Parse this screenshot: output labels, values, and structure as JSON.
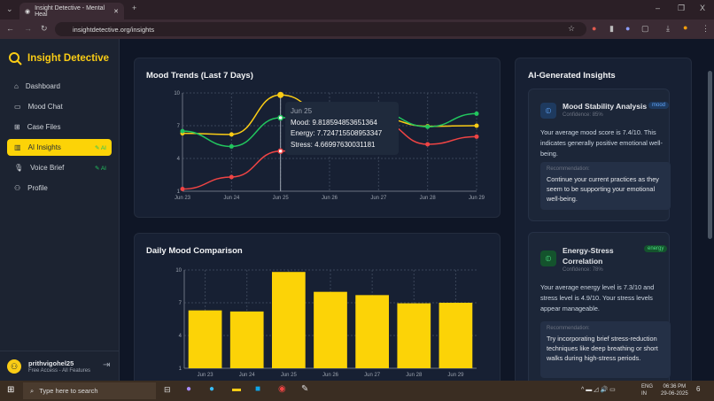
{
  "browser": {
    "tab_title": "Insight Detective - Mental Heal",
    "url": "insightdetective.org/insights",
    "new_tab": "+",
    "minimize": "–",
    "maximize": "❐",
    "close": "X"
  },
  "sidebar": {
    "brand": "Insight Detective",
    "items": [
      {
        "label": "Dashboard",
        "icon": "home-icon"
      },
      {
        "label": "Mood Chat",
        "icon": "chat-icon"
      },
      {
        "label": "Case Files",
        "icon": "book-icon"
      },
      {
        "label": "AI Insights",
        "icon": "chart-icon",
        "badge": "✎ AI",
        "active": true
      },
      {
        "label": "Voice Brief",
        "icon": "mic-icon",
        "badge": "✎ AI"
      },
      {
        "label": "Profile",
        "icon": "user-icon"
      }
    ],
    "user": {
      "name": "prithvigohel25",
      "plan": "Free Access - All Features"
    }
  },
  "colors": {
    "mood": "#facc15",
    "energy": "#22c55e",
    "stress": "#ef4444",
    "accent": "#fcd307"
  },
  "chart_data": [
    {
      "type": "line",
      "title": "Mood Trends (Last 7 Days)",
      "categories": [
        "Jun 23",
        "Jun 24",
        "Jun 25",
        "Jun 26",
        "Jun 27",
        "Jun 28",
        "Jun 29"
      ],
      "ylim": [
        1,
        10
      ],
      "yticks": [
        1,
        4,
        7,
        10
      ],
      "grid": true,
      "series": [
        {
          "name": "Mood",
          "values": [
            6.3,
            6.2,
            9.818594853651364,
            8.0,
            7.7,
            6.95,
            7.0
          ]
        },
        {
          "name": "Energy",
          "values": [
            6.5,
            5.1,
            7.724715508953347,
            8.0,
            8.2,
            6.9,
            8.1
          ]
        },
        {
          "name": "Stress",
          "values": [
            1.2,
            2.3,
            4.66997630031181,
            6.0,
            7.4,
            5.3,
            6.0
          ]
        }
      ],
      "tooltip": {
        "title": "Jun 25",
        "lines": [
          "Mood: 9.818594853651364",
          "Energy: 7.724715508953347",
          "Stress: 4.66997630031181"
        ]
      }
    },
    {
      "type": "bar",
      "title": "Daily Mood Comparison",
      "categories": [
        "Jun 23",
        "Jun 24",
        "Jun 25",
        "Jun 26",
        "Jun 27",
        "Jun 28",
        "Jun 29"
      ],
      "ylim": [
        1,
        10
      ],
      "yticks": [
        1,
        4,
        7,
        10
      ],
      "grid": true,
      "values": [
        6.3,
        6.2,
        9.82,
        8.0,
        7.7,
        6.95,
        7.0
      ]
    }
  ],
  "insights": {
    "title": "AI-Generated Insights",
    "cards": [
      {
        "title": "Mood Stability Analysis",
        "tag": "mood",
        "confidence": "Confidence: 85%",
        "body": "Your average mood score is 7.4/10. This indicates generally positive emotional well-being.",
        "rec_label": "Recommendation:",
        "rec": "Continue your current practices as they seem to be supporting your emotional well-being."
      },
      {
        "title": "Energy-Stress Correlation",
        "tag": "energy",
        "confidence": "Confidence: 78%",
        "body": "Your average energy level is 7.3/10 and stress level is 4.9/10. Your stress levels appear manageable.",
        "rec_label": "Recommendation:",
        "rec": "Try incorporating brief stress-reduction techniques like deep breathing or short walks during high-stress periods."
      }
    ]
  },
  "taskbar": {
    "search": "Type here to search",
    "lang1": "ENG",
    "lang2": "IN",
    "time": "06:36 PM",
    "date": "29-06-2025",
    "notif": "6"
  }
}
